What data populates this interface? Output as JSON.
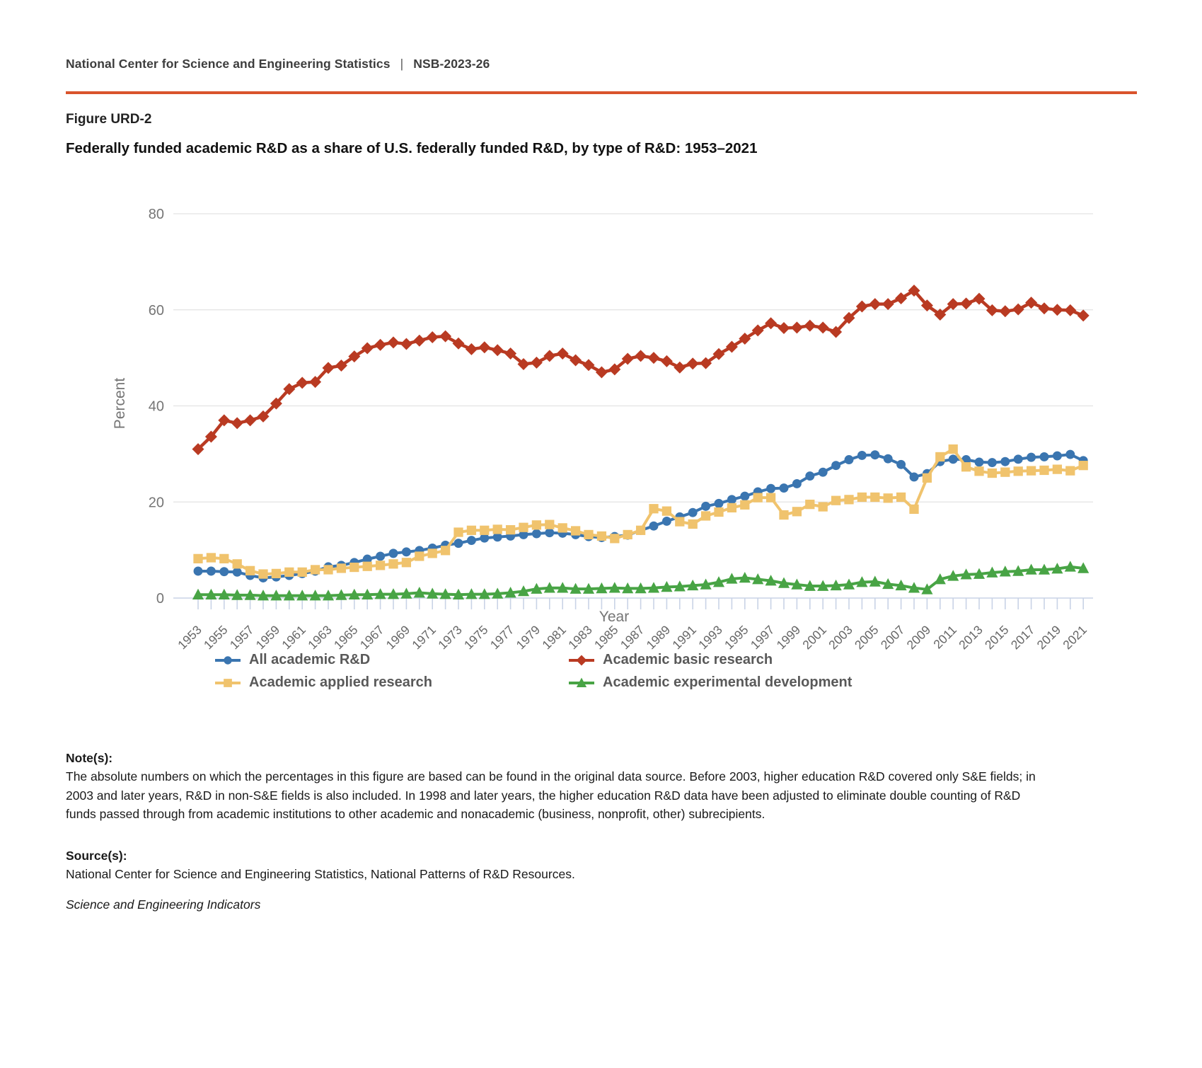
{
  "header": {
    "org": "National Center for Science and Engineering Statistics",
    "separator": "|",
    "report_id": "NSB-2023-26"
  },
  "figure": {
    "label": "Figure URD-2",
    "title": "Federally funded academic R&D as a share of U.S. federally funded R&D, by type of R&D: 1953–2021"
  },
  "chart_data": {
    "type": "line",
    "xlabel": "Year",
    "ylabel": "Percent",
    "ylim": [
      0,
      80
    ],
    "yticks": [
      0,
      20,
      40,
      60,
      80
    ],
    "grid": true,
    "legend_position": "bottom",
    "x": [
      1953,
      1954,
      1955,
      1956,
      1957,
      1958,
      1959,
      1960,
      1961,
      1962,
      1963,
      1964,
      1965,
      1966,
      1967,
      1968,
      1969,
      1970,
      1971,
      1972,
      1973,
      1974,
      1975,
      1976,
      1977,
      1978,
      1979,
      1980,
      1981,
      1982,
      1983,
      1984,
      1985,
      1986,
      1987,
      1988,
      1989,
      1990,
      1991,
      1992,
      1993,
      1994,
      1995,
      1996,
      1997,
      1998,
      1999,
      2000,
      2001,
      2002,
      2003,
      2004,
      2005,
      2006,
      2007,
      2008,
      2009,
      2010,
      2011,
      2012,
      2013,
      2014,
      2015,
      2016,
      2017,
      2018,
      2019,
      2020,
      2021
    ],
    "x_tick_labels": [
      "1953",
      "1955",
      "1957",
      "1959",
      "1961",
      "1963",
      "1965",
      "1967",
      "1969",
      "1971",
      "1973",
      "1975",
      "1977",
      "1979",
      "1981",
      "1983",
      "1985",
      "1987",
      "1989",
      "1991",
      "1993",
      "1995",
      "1997",
      "1999",
      "2001",
      "2003",
      "2005",
      "2007",
      "2009",
      "2011",
      "2013",
      "2015",
      "2017",
      "2019",
      "2021"
    ],
    "series": [
      {
        "name": "All academic R&D",
        "color": "#3a75b0",
        "marker": "circle",
        "values": [
          5.6,
          5.6,
          5.5,
          5.4,
          4.7,
          4.2,
          4.4,
          4.7,
          5.1,
          5.6,
          6.5,
          6.8,
          7.4,
          8.1,
          8.7,
          9.3,
          9.6,
          9.9,
          10.4,
          11.0,
          11.4,
          12.0,
          12.5,
          12.7,
          12.9,
          13.2,
          13.4,
          13.6,
          13.5,
          13.2,
          12.8,
          12.6,
          12.8,
          13.1,
          14.1,
          15.0,
          16.0,
          16.9,
          17.8,
          19.1,
          19.7,
          20.5,
          21.2,
          22.1,
          22.8,
          22.9,
          23.8,
          25.4,
          26.2,
          27.6,
          28.8,
          29.7,
          29.8,
          29.0,
          27.8,
          25.2,
          25.9,
          28.4,
          28.9,
          28.8,
          28.3,
          28.2,
          28.4,
          28.9,
          29.3,
          29.4,
          29.6,
          29.9,
          28.6
        ]
      },
      {
        "name": "Academic basic research",
        "color": "#b93a22",
        "marker": "diamond",
        "values": [
          31.0,
          33.6,
          37.0,
          36.4,
          37.0,
          37.8,
          40.5,
          43.5,
          44.8,
          45.0,
          47.9,
          48.4,
          50.3,
          52.0,
          52.7,
          53.2,
          52.9,
          53.6,
          54.3,
          54.5,
          53.0,
          51.8,
          52.2,
          51.6,
          50.9,
          48.7,
          49.0,
          50.4,
          50.9,
          49.5,
          48.5,
          47.0,
          47.6,
          49.8,
          50.4,
          50.0,
          49.3,
          48.0,
          48.8,
          48.9,
          50.8,
          52.3,
          54.0,
          55.7,
          57.2,
          56.2,
          56.3,
          56.7,
          56.3,
          55.4,
          58.3,
          60.7,
          61.2,
          61.2,
          62.4,
          64.0,
          60.9,
          59.0,
          61.2,
          61.3,
          62.3,
          59.9,
          59.7,
          60.1,
          61.5,
          60.3,
          60.0,
          59.9,
          58.8
        ]
      },
      {
        "name": "Academic applied research",
        "color": "#f0c36d",
        "marker": "square",
        "values": [
          8.2,
          8.4,
          8.2,
          7.1,
          5.7,
          5.0,
          5.1,
          5.4,
          5.4,
          5.9,
          5.9,
          6.2,
          6.4,
          6.6,
          6.8,
          7.1,
          7.4,
          8.7,
          9.3,
          9.9,
          13.7,
          14.1,
          14.1,
          14.3,
          14.2,
          14.7,
          15.2,
          15.3,
          14.6,
          14.0,
          13.2,
          12.9,
          12.4,
          13.2,
          14.1,
          18.6,
          18.1,
          15.9,
          15.4,
          17.1,
          17.9,
          18.8,
          19.4,
          20.9,
          20.9,
          17.3,
          18.0,
          19.5,
          19.0,
          20.3,
          20.5,
          21.0,
          21.0,
          20.8,
          21.0,
          18.5,
          25.0,
          29.4,
          31.0,
          27.3,
          26.4,
          26.0,
          26.2,
          26.4,
          26.5,
          26.6,
          26.8,
          26.5,
          27.6
        ]
      },
      {
        "name": "Academic experimental development",
        "color": "#48a445",
        "marker": "triangle",
        "values": [
          0.7,
          0.7,
          0.7,
          0.6,
          0.6,
          0.5,
          0.5,
          0.5,
          0.5,
          0.5,
          0.5,
          0.6,
          0.7,
          0.7,
          0.8,
          0.8,
          0.9,
          1.1,
          0.9,
          0.8,
          0.7,
          0.8,
          0.8,
          0.9,
          1.1,
          1.4,
          1.9,
          2.1,
          2.1,
          1.9,
          1.9,
          2.0,
          2.1,
          2.0,
          2.0,
          2.1,
          2.3,
          2.4,
          2.6,
          2.8,
          3.3,
          4.0,
          4.2,
          3.9,
          3.6,
          3.1,
          2.8,
          2.5,
          2.5,
          2.6,
          2.8,
          3.3,
          3.4,
          2.9,
          2.6,
          2.1,
          1.8,
          3.9,
          4.6,
          4.9,
          5.0,
          5.3,
          5.5,
          5.6,
          5.9,
          5.9,
          6.1,
          6.5,
          6.2
        ]
      }
    ],
    "colors": {
      "grid": "#e3e3e3",
      "axis": "#c9d3e6",
      "y_label": "#757575",
      "x_label": "#666666",
      "axis_title": "#757575",
      "accent_rule": "#d9542c"
    }
  },
  "notes": {
    "heading": "Note(s):",
    "body": "The absolute numbers on which the percentages in this figure are based can be found in the original data source. Before 2003, higher education R&D covered only S&E fields; in 2003 and later years, R&D in non-S&E fields is also included. In 1998 and later years, the higher education R&D data have been adjusted to eliminate double counting of R&D funds passed through from academic institutions to other academic and nonacademic (business, nonprofit, other) subrecipients."
  },
  "sources": {
    "heading": "Source(s):",
    "body": "National Center for Science and Engineering Statistics, National Patterns of R&D Resources."
  },
  "footer": {
    "publication": "Science and Engineering Indicators"
  }
}
